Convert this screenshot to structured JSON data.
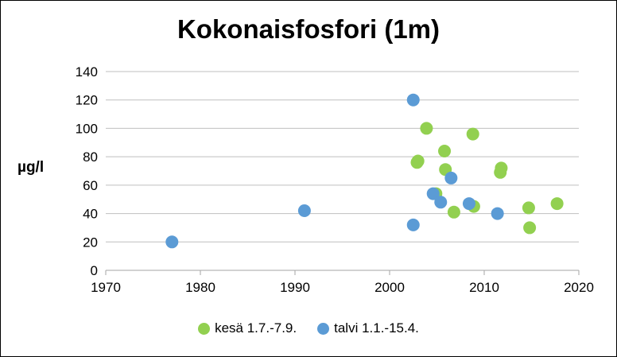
{
  "chart_data": {
    "type": "scatter",
    "title": "Kokonaisfosfori (1m)",
    "xlabel": "",
    "ylabel": "µg/l",
    "xlim": [
      1970,
      2020
    ],
    "ylim": [
      0,
      140
    ],
    "x_ticks": [
      "1970",
      "1980",
      "1990",
      "2000",
      "2010",
      "2020"
    ],
    "y_ticks": [
      "0",
      "20",
      "40",
      "60",
      "80",
      "100",
      "120",
      "140"
    ],
    "grid": "horizontal",
    "legend_position": "bottom",
    "series": [
      {
        "name": "kesä 1.7.-7.9.",
        "color": "#92D050",
        "points": [
          {
            "x": 2002.9,
            "y": 76
          },
          {
            "x": 2003.0,
            "y": 77
          },
          {
            "x": 2003.9,
            "y": 100
          },
          {
            "x": 2004.9,
            "y": 54
          },
          {
            "x": 2005.8,
            "y": 84
          },
          {
            "x": 2005.9,
            "y": 71
          },
          {
            "x": 2006.8,
            "y": 41
          },
          {
            "x": 2008.8,
            "y": 96
          },
          {
            "x": 2008.9,
            "y": 45
          },
          {
            "x": 2011.7,
            "y": 69
          },
          {
            "x": 2011.8,
            "y": 72
          },
          {
            "x": 2014.7,
            "y": 44
          },
          {
            "x": 2014.8,
            "y": 30
          },
          {
            "x": 2017.7,
            "y": 47
          }
        ]
      },
      {
        "name": "talvi 1.1.-15.4.",
        "color": "#5B9BD5",
        "points": [
          {
            "x": 1977.0,
            "y": 20
          },
          {
            "x": 1991.0,
            "y": 42
          },
          {
            "x": 2002.5,
            "y": 120
          },
          {
            "x": 2002.5,
            "y": 32
          },
          {
            "x": 2004.6,
            "y": 54
          },
          {
            "x": 2005.4,
            "y": 48
          },
          {
            "x": 2006.5,
            "y": 65
          },
          {
            "x": 2008.4,
            "y": 47
          },
          {
            "x": 2011.4,
            "y": 40
          }
        ]
      }
    ]
  }
}
